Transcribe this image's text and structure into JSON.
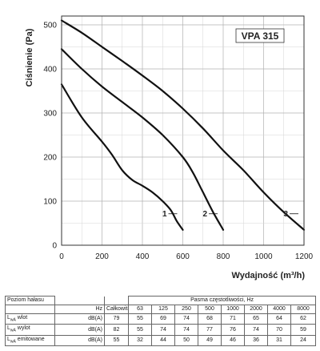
{
  "chart_data": {
    "type": "line",
    "title": "VPA 315",
    "xlabel": "Wydajność (m³/h)",
    "ylabel": "Ciśnienie (Pa)",
    "xlim": [
      0,
      1200
    ],
    "ylim": [
      0,
      520
    ],
    "xticks": [
      "0",
      "200",
      "400",
      "600",
      "800",
      "1000",
      "1200"
    ],
    "yticks": [
      "0",
      "100",
      "200",
      "300",
      "400",
      "500"
    ],
    "grid": true,
    "series": [
      {
        "name": "1",
        "points": [
          [
            0,
            365
          ],
          [
            100,
            290
          ],
          [
            200,
            235
          ],
          [
            250,
            205
          ],
          [
            300,
            170
          ],
          [
            350,
            148
          ],
          [
            400,
            135
          ],
          [
            450,
            120
          ],
          [
            500,
            100
          ],
          [
            540,
            80
          ],
          [
            570,
            55
          ],
          [
            600,
            35
          ]
        ]
      },
      {
        "name": "2",
        "points": [
          [
            0,
            445
          ],
          [
            100,
            400
          ],
          [
            200,
            360
          ],
          [
            300,
            325
          ],
          [
            400,
            290
          ],
          [
            500,
            250
          ],
          [
            600,
            200
          ],
          [
            650,
            165
          ],
          [
            700,
            120
          ],
          [
            750,
            75
          ],
          [
            800,
            35
          ]
        ]
      },
      {
        "name": "3",
        "points": [
          [
            0,
            510
          ],
          [
            100,
            482
          ],
          [
            200,
            450
          ],
          [
            300,
            418
          ],
          [
            400,
            385
          ],
          [
            500,
            350
          ],
          [
            600,
            310
          ],
          [
            700,
            265
          ],
          [
            800,
            215
          ],
          [
            900,
            170
          ],
          [
            1000,
            120
          ],
          [
            1100,
            75
          ],
          [
            1200,
            35
          ]
        ]
      }
    ]
  },
  "noise_table": {
    "title": "Poziom hałasu",
    "band_caption": "Pasma częstotliwości, Hz",
    "unit_hz": "Hz",
    "total_label": "Całkowita",
    "bands": [
      "63",
      "125",
      "250",
      "500",
      "1000",
      "2000",
      "4000",
      "8000"
    ],
    "rows": [
      {
        "prefix": "L",
        "sub": "wA",
        "label": " wlot",
        "unit": "dB(A)",
        "values": [
          "79",
          "55",
          "69",
          "74",
          "68",
          "71",
          "65",
          "64",
          "62"
        ]
      },
      {
        "prefix": "L",
        "sub": "wA",
        "label": " wylot",
        "unit": "dB(A)",
        "values": [
          "82",
          "55",
          "74",
          "74",
          "77",
          "76",
          "74",
          "70",
          "59"
        ]
      },
      {
        "prefix": "L",
        "sub": "wA",
        "label": " emitowane",
        "unit": "dB(A)",
        "values": [
          "55",
          "32",
          "44",
          "50",
          "49",
          "46",
          "36",
          "31",
          "24"
        ]
      }
    ]
  }
}
